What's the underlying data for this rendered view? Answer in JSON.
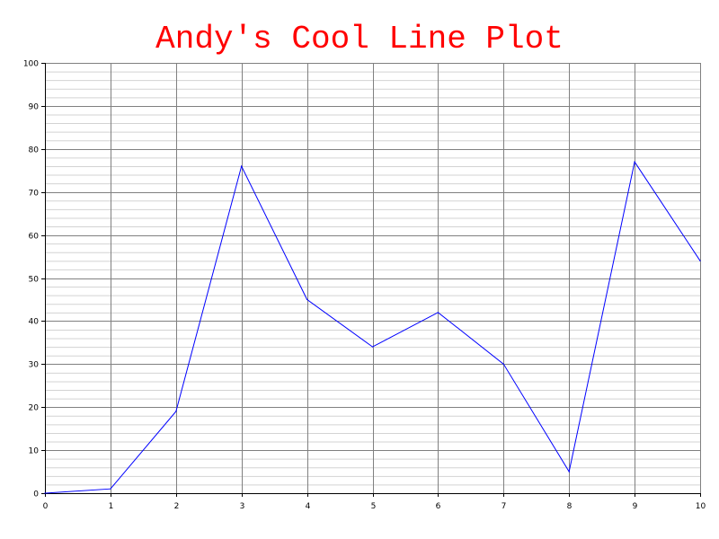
{
  "chart_data": {
    "type": "line",
    "title": "Andy's Cool Line Plot",
    "xlabel": "",
    "ylabel": "",
    "xlim": [
      0,
      10
    ],
    "ylim": [
      0,
      100
    ],
    "x_ticks": [
      "0",
      "1",
      "2",
      "3",
      "4",
      "5",
      "6",
      "7",
      "8",
      "9",
      "10"
    ],
    "y_ticks": [
      "0",
      "10",
      "20",
      "30",
      "40",
      "50",
      "60",
      "70",
      "80",
      "90",
      "100"
    ],
    "grid": true,
    "minor_grid_step": 2,
    "series": [
      {
        "x": [
          0,
          1,
          2,
          3,
          4,
          5,
          6,
          7,
          8,
          9,
          10
        ],
        "y": [
          0,
          1,
          19,
          76,
          45,
          34,
          42,
          30,
          5,
          77,
          54
        ],
        "color": "#0000ff"
      }
    ],
    "colors": {
      "title": "#ff0000",
      "major_grid": "#808080",
      "minor_grid": "#d3d3d3",
      "axis": "#000000"
    }
  }
}
